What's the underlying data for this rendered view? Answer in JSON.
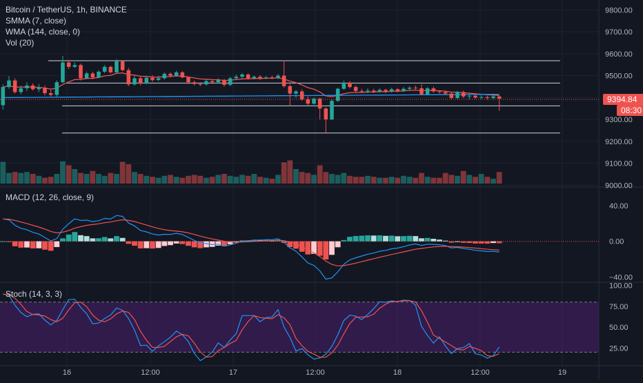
{
  "header": {
    "symbol": "Bitcoin / TetherUS, 1h, BINANCE",
    "smma": "SMMA (7, close)",
    "wma": "WMA (144, close, 0)",
    "vol": "Vol (20)"
  },
  "price_tag": {
    "last": "9394.84",
    "countdown": "08:30"
  },
  "macd_label": "MACD (12, 26, close, 9)",
  "stoch_label": "Stoch (14, 3, 3)",
  "colors": {
    "bg": "#131722",
    "up": "#26a69a",
    "down": "#ef5350",
    "smma": "#ef5350",
    "wma": "#2196f3",
    "stoch_band": "#4a1f6e"
  },
  "chart_data": [
    {
      "type": "candlestick",
      "name": "price",
      "y_ticks": [
        "9800.00",
        "9700.00",
        "9600.00",
        "9500.00",
        "9400.00",
        "9300.00",
        "9200.00",
        "9100.00",
        "9000.00"
      ],
      "ylim": [
        8995,
        9845
      ],
      "hlines": [
        9568,
        9466,
        9362,
        9238
      ],
      "candles": [
        [
          9365,
          9448,
          9345,
          9460
        ],
        [
          9448,
          9478,
          9440,
          9498
        ],
        [
          9478,
          9425,
          9418,
          9488
        ],
        [
          9425,
          9442,
          9415,
          9455
        ],
        [
          9442,
          9455,
          9430,
          9470
        ],
        [
          9455,
          9438,
          9432,
          9465
        ],
        [
          9438,
          9445,
          9425,
          9462
        ],
        [
          9445,
          9420,
          9410,
          9455
        ],
        [
          9420,
          9412,
          9405,
          9440
        ],
        [
          9412,
          9470,
          9405,
          9478
        ],
        [
          9470,
          9560,
          9465,
          9590
        ],
        [
          9560,
          9540,
          9530,
          9572
        ],
        [
          9540,
          9548,
          9535,
          9560
        ],
        [
          9548,
          9488,
          9478,
          9555
        ],
        [
          9488,
          9510,
          9485,
          9518
        ],
        [
          9510,
          9492,
          9483,
          9518
        ],
        [
          9492,
          9518,
          9488,
          9525
        ],
        [
          9518,
          9540,
          9512,
          9548
        ],
        [
          9540,
          9515,
          9510,
          9545
        ],
        [
          9515,
          9565,
          9510,
          9575
        ],
        [
          9565,
          9525,
          9520,
          9568
        ],
        [
          9525,
          9460,
          9452,
          9535
        ],
        [
          9460,
          9488,
          9455,
          9500
        ],
        [
          9488,
          9465,
          9455,
          9495
        ],
        [
          9465,
          9490,
          9460,
          9498
        ],
        [
          9490,
          9480,
          9472,
          9502
        ],
        [
          9480,
          9488,
          9475,
          9500
        ],
        [
          9488,
          9508,
          9482,
          9515
        ],
        [
          9508,
          9500,
          9492,
          9515
        ],
        [
          9500,
          9515,
          9495,
          9522
        ],
        [
          9515,
          9492,
          9488,
          9520
        ],
        [
          9492,
          9470,
          9462,
          9495
        ],
        [
          9470,
          9462,
          9455,
          9478
        ],
        [
          9462,
          9460,
          9452,
          9470
        ],
        [
          9460,
          9475,
          9455,
          9482
        ],
        [
          9475,
          9470,
          9462,
          9485
        ],
        [
          9470,
          9480,
          9466,
          9488
        ],
        [
          9480,
          9458,
          9450,
          9486
        ],
        [
          9458,
          9488,
          9452,
          9495
        ],
        [
          9488,
          9495,
          9482,
          9505
        ],
        [
          9495,
          9505,
          9488,
          9512
        ],
        [
          9505,
          9488,
          9482,
          9510
        ],
        [
          9488,
          9495,
          9482,
          9500
        ],
        [
          9495,
          9488,
          9480,
          9502
        ],
        [
          9488,
          9492,
          9485,
          9498
        ],
        [
          9492,
          9490,
          9484,
          9500
        ],
        [
          9490,
          9500,
          9484,
          9508
        ],
        [
          9500,
          9452,
          9445,
          9570
        ],
        [
          9452,
          9418,
          9362,
          9460
        ],
        [
          9418,
          9428,
          9398,
          9435
        ],
        [
          9428,
          9392,
          9385,
          9438
        ],
        [
          9392,
          9372,
          9365,
          9405
        ],
        [
          9372,
          9395,
          9368,
          9400
        ],
        [
          9395,
          9350,
          9300,
          9398
        ],
        [
          9350,
          9300,
          9240,
          9355
        ],
        [
          9300,
          9385,
          9298,
          9392
        ],
        [
          9385,
          9440,
          9380,
          9445
        ],
        [
          9440,
          9468,
          9435,
          9478
        ],
        [
          9468,
          9448,
          9442,
          9475
        ],
        [
          9448,
          9430,
          9424,
          9455
        ],
        [
          9430,
          9428,
          9420,
          9440
        ],
        [
          9428,
          9432,
          9420,
          9442
        ],
        [
          9432,
          9428,
          9420,
          9440
        ],
        [
          9428,
          9435,
          9422,
          9442
        ],
        [
          9435,
          9428,
          9420,
          9440
        ],
        [
          9428,
          9438,
          9422,
          9445
        ],
        [
          9438,
          9430,
          9424,
          9442
        ],
        [
          9430,
          9440,
          9425,
          9448
        ],
        [
          9440,
          9445,
          9432,
          9452
        ],
        [
          9445,
          9442,
          9435,
          9455
        ],
        [
          9442,
          9415,
          9410,
          9460
        ],
        [
          9415,
          9442,
          9410,
          9448
        ],
        [
          9442,
          9428,
          9422,
          9450
        ],
        [
          9428,
          9425,
          9418,
          9432
        ],
        [
          9425,
          9418,
          9412,
          9430
        ],
        [
          9418,
          9398,
          9392,
          9425
        ],
        [
          9398,
          9425,
          9392,
          9430
        ],
        [
          9425,
          9405,
          9398,
          9432
        ],
        [
          9405,
          9408,
          9392,
          9418
        ],
        [
          9408,
          9400,
          9394,
          9415
        ],
        [
          9400,
          9402,
          9394,
          9410
        ],
        [
          9402,
          9398,
          9390,
          9408
        ],
        [
          9398,
          9405,
          9392,
          9412
        ],
        [
          9405,
          9395,
          9340,
          9410
        ]
      ],
      "volume_ylim": [
        0,
        100
      ],
      "volumes": [
        45,
        22,
        24,
        22,
        24,
        20,
        16,
        12,
        14,
        20,
        46,
        38,
        30,
        22,
        20,
        26,
        20,
        16,
        22,
        20,
        45,
        40,
        24,
        20,
        16,
        14,
        12,
        16,
        18,
        14,
        12,
        16,
        18,
        16,
        12,
        14,
        18,
        20,
        16,
        14,
        18,
        16,
        20,
        14,
        12,
        10,
        18,
        44,
        48,
        30,
        24,
        22,
        18,
        38,
        24,
        20,
        18,
        22,
        16,
        14,
        14,
        16,
        14,
        12,
        12,
        14,
        12,
        16,
        14,
        12,
        22,
        14,
        12,
        12,
        22,
        18,
        16,
        26,
        18,
        14,
        20,
        14,
        10,
        24
      ]
    },
    {
      "type": "macd",
      "name": "MACD (12, 26, close, 9)",
      "y_ticks": [
        "40.00",
        "0.00",
        "−40.00"
      ],
      "ylim": [
        -45,
        60
      ]
    },
    {
      "type": "stochastic",
      "name": "Stoch (14, 3, 3)",
      "y_ticks": [
        "100.00",
        "75.00",
        "50.00",
        "25.00"
      ],
      "ylim": [
        12,
        103
      ],
      "bands": [
        80,
        20
      ]
    }
  ],
  "x_ticks": [
    "16",
    "12:00",
    "17",
    "12:00",
    "18",
    "12:00",
    "19"
  ]
}
